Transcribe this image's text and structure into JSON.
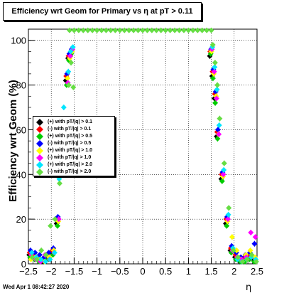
{
  "title": "Efficiency wrt Geom for Primary vs   η at pT > 0.11",
  "timestamp": "Wed Apr  1 08:42:27 2020",
  "chart_data": {
    "type": "scatter",
    "xlabel": "η",
    "ylabel": "Efficiency wrt Geom (%)",
    "xlim": [
      -2.5,
      2.5
    ],
    "ylim": [
      0,
      105
    ],
    "grid": true,
    "legend_position": "left",
    "x_ticks": [
      -2.5,
      -2,
      -1.5,
      -1,
      -0.5,
      0,
      0.5,
      1,
      1.5,
      2,
      2.5
    ],
    "x_tick_labels": [
      "−2.5",
      "−2",
      "−1.5",
      "−1",
      "−0.5",
      "0",
      "0.5",
      "1",
      "1.5",
      "2",
      "2.5"
    ],
    "y_ticks": [
      0,
      20,
      40,
      60,
      80,
      100
    ],
    "y_tick_labels": [
      "0",
      "20",
      "40",
      "60",
      "80",
      "100"
    ],
    "series": [
      {
        "name": "(+) with pT/|q| > 0.1",
        "color": "#000000",
        "marker": "diamond",
        "x": [
          -2.45,
          -2.35,
          -2.25,
          -2.15,
          -2.05,
          -1.95,
          -1.85,
          -1.75,
          -1.65,
          -1.6,
          -1.55,
          1.5,
          1.55,
          1.6,
          1.65,
          1.75,
          1.85,
          1.95,
          2.05,
          2.15,
          2.25,
          2.35,
          2.45
        ],
        "y": [
          4,
          3,
          2,
          1,
          3,
          5,
          18,
          55,
          82,
          92,
          93,
          93,
          84,
          74,
          57,
          38,
          18,
          6,
          3,
          1,
          2,
          3,
          2
        ]
      },
      {
        "name": "(-) with pT/|q| > 0.1",
        "color": "#ff0000",
        "marker": "diamond",
        "x": [
          -2.45,
          -2.35,
          -2.25,
          -2.15,
          -2.05,
          -1.95,
          -1.85,
          -1.75,
          -1.65,
          -1.6,
          -1.55,
          1.5,
          1.55,
          1.6,
          1.65,
          1.75,
          1.85,
          1.95,
          2.05,
          2.15,
          2.25,
          2.35,
          2.45
        ],
        "y": [
          5,
          4,
          3,
          2,
          4,
          6,
          20,
          58,
          84,
          93,
          95,
          95,
          86,
          76,
          59,
          40,
          20,
          7,
          4,
          2,
          3,
          4,
          3
        ]
      },
      {
        "name": "(+) with pT/|q| > 0.5",
        "color": "#00cc00",
        "marker": "diamond",
        "x": [
          -2.45,
          -2.35,
          -2.25,
          -2.15,
          -2.05,
          -1.95,
          -1.85,
          -1.75,
          -1.65,
          -1.6,
          -1.55,
          1.5,
          1.55,
          1.6,
          1.65,
          1.75,
          1.85,
          1.95,
          2.05,
          2.15,
          2.25,
          2.35,
          2.45
        ],
        "y": [
          3,
          2,
          1,
          2,
          2,
          4,
          17,
          53,
          80,
          91,
          94,
          94,
          83,
          72,
          56,
          37,
          17,
          5,
          2,
          1,
          1,
          2,
          1
        ]
      },
      {
        "name": "(-) with pT/|q| > 0.5",
        "color": "#0000ff",
        "marker": "diamond",
        "x": [
          -2.45,
          -2.35,
          -2.25,
          -2.15,
          -2.05,
          -1.95,
          -1.85,
          -1.75,
          -1.65,
          -1.6,
          -1.55,
          1.5,
          1.55,
          1.6,
          1.65,
          1.75,
          1.85,
          1.95,
          2.05,
          2.15,
          2.25,
          2.35,
          2.45
        ],
        "y": [
          6,
          5,
          4,
          3,
          5,
          7,
          21,
          60,
          85,
          94,
          96,
          96,
          87,
          77,
          60,
          41,
          21,
          8,
          5,
          3,
          4,
          5,
          9
        ]
      },
      {
        "name": "(+) with pT/|q| > 1.0",
        "color": "#ffff00",
        "marker": "diamond",
        "x": [
          -2.45,
          -2.35,
          -2.25,
          -2.15,
          -2.05,
          -1.95,
          -1.85,
          -1.75,
          -1.65,
          -1.6,
          -1.55,
          1.5,
          1.55,
          1.6,
          1.65,
          1.75,
          1.85,
          1.95,
          2.05,
          2.15,
          2.25,
          2.35,
          2.45
        ],
        "y": [
          2,
          3,
          2,
          1,
          3,
          6,
          19,
          56,
          83,
          92,
          95,
          95,
          85,
          75,
          58,
          39,
          19,
          12,
          6,
          2,
          4,
          6,
          3
        ]
      },
      {
        "name": "(-) with pT/|q| > 1.0",
        "color": "#ff00ff",
        "marker": "diamond",
        "x": [
          -2.45,
          -2.35,
          -2.25,
          -2.15,
          -2.05,
          -1.95,
          -1.85,
          -1.75,
          -1.65,
          -1.6,
          -1.55,
          1.5,
          1.55,
          1.6,
          1.65,
          1.75,
          1.85,
          1.95,
          2.05,
          2.15,
          2.25,
          2.35,
          2.45
        ],
        "y": [
          4,
          2,
          1,
          4,
          2,
          5,
          20,
          57,
          81,
          93,
          96,
          96,
          86,
          74,
          58,
          40,
          20,
          6,
          3,
          2,
          3,
          14,
          12
        ]
      },
      {
        "name": "(+) with pT/|q| > 2.0",
        "color": "#00e5ff",
        "marker": "diamond",
        "x": [
          -2.45,
          -2.35,
          -2.25,
          -2.15,
          -2.05,
          -1.95,
          -1.85,
          -1.75,
          -1.65,
          -1.6,
          -1.55,
          1.5,
          1.55,
          1.6,
          1.65,
          1.75,
          1.85,
          1.95,
          2.05,
          2.15,
          2.25,
          2.35,
          2.45
        ],
        "y": [
          5,
          3,
          2,
          1,
          2,
          5,
          38,
          70,
          86,
          95,
          97,
          97,
          88,
          78,
          62,
          42,
          22,
          7,
          2,
          1,
          2,
          3,
          2
        ]
      },
      {
        "name": "(-) with pT/|q| > 2.0",
        "color": "#66dd44",
        "marker": "diamond",
        "x": [
          -2.45,
          -2.35,
          -2.25,
          -2.15,
          -2.05,
          -1.95,
          -1.85,
          -1.75,
          -1.65,
          -1.6,
          -1.55,
          1.5,
          1.55,
          1.6,
          1.65,
          1.75,
          1.85,
          1.95,
          2.05,
          2.15,
          2.25,
          2.35,
          2.45
        ],
        "y": [
          3,
          2,
          6,
          4,
          17,
          20,
          36,
          62,
          80,
          90,
          79,
          98,
          90,
          80,
          65,
          45,
          25,
          6,
          3,
          1,
          2,
          4,
          1
        ]
      }
    ],
    "saturated_points": {
      "color": "#66dd44",
      "x": [
        -1.6,
        -1.5,
        -1.4,
        -1.3,
        -1.2,
        -1.1,
        -1.0,
        -0.9,
        -0.8,
        -0.7,
        -0.6,
        -0.5,
        -0.4,
        -0.3,
        -0.2,
        -0.1,
        0.0,
        0.1,
        0.2,
        0.3,
        0.4,
        0.5,
        0.6,
        0.7,
        0.8,
        0.9,
        1.0,
        1.1,
        1.2,
        1.3,
        1.4,
        1.5
      ],
      "y": 104.5
    }
  }
}
